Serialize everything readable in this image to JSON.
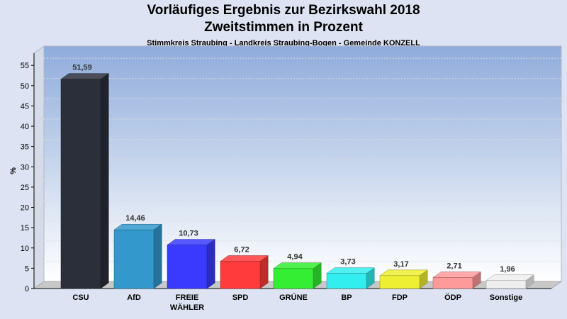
{
  "header": {
    "title_line1": "Vorläufiges Ergebnis zur Bezirkswahl 2018",
    "title_line2": "Zweitstimmen in Prozent",
    "subtitle": "Stimmkreis Straubing - Landkreis Straubing-Bogen - Gemeinde KONZELL"
  },
  "chart_data": {
    "type": "bar",
    "title": "Vorläufiges Ergebnis zur Bezirkswahl 2018 Zweitstimmen in Prozent",
    "subtitle": "Stimmkreis Straubing - Landkreis Straubing-Bogen - Gemeinde KONZELL",
    "ylabel": "%",
    "ylim": [
      0,
      58
    ],
    "yticks": [
      0,
      5,
      10,
      15,
      20,
      25,
      30,
      35,
      40,
      45,
      50,
      55
    ],
    "grid": true,
    "categories": [
      [
        "CSU"
      ],
      [
        "AfD"
      ],
      [
        "FREIE",
        "WÄHLER"
      ],
      [
        "SPD"
      ],
      [
        "GRÜNE"
      ],
      [
        "BP"
      ],
      [
        "FDP"
      ],
      [
        "ÖDP"
      ],
      [
        "Sonstige"
      ]
    ],
    "values": [
      51.59,
      14.46,
      10.73,
      6.72,
      4.94,
      3.73,
      3.17,
      2.71,
      1.96
    ],
    "value_labels": [
      "51,59",
      "14,46",
      "10,73",
      "6,72",
      "4,94",
      "3,73",
      "3,17",
      "2,71",
      "1,96"
    ],
    "colors": [
      "#2a2f3a",
      "#3399cc",
      "#3a3aff",
      "#ff3b3b",
      "#33ee33",
      "#33eeee",
      "#eeee33",
      "#ff9a9a",
      "#eeeeee"
    ],
    "plot_background_top": "#8facdb",
    "plot_background_bottom": "#ffffff"
  }
}
